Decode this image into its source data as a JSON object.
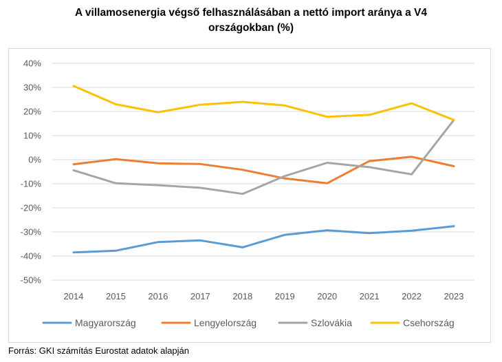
{
  "title_line1": "A villamosenergia végső felhasználásában a nettó import aránya a V4",
  "title_line2": "országokban (%)",
  "source": "Forrás: GKI számítás Eurostat adatok alapján",
  "chart_data": {
    "type": "line",
    "title": "A villamosenergia végső felhasználásában a nettó import aránya a V4 országokban (%)",
    "x": [
      "2014",
      "2015",
      "2016",
      "2017",
      "2018",
      "2019",
      "2020",
      "2021",
      "2022",
      "2023"
    ],
    "ylim": [
      -50,
      40
    ],
    "yticks": [
      40,
      30,
      20,
      10,
      0,
      -10,
      -20,
      -30,
      -40,
      -50
    ],
    "ytick_labels": [
      "40%",
      "30%",
      "20%",
      "10%",
      "0%",
      "-10%",
      "-20%",
      "-30%",
      "-40%",
      "-50%"
    ],
    "grid": true,
    "legend_position": "bottom",
    "series": [
      {
        "name": "Magyarország",
        "color": "#5b9bd5",
        "values": [
          -38.5,
          -37.8,
          -34.2,
          -33.5,
          -36.4,
          -31.2,
          -29.3,
          -30.5,
          -29.5,
          -27.6
        ]
      },
      {
        "name": "Lengyelország",
        "color": "#ed7d31",
        "values": [
          -1.9,
          0.2,
          -1.5,
          -1.8,
          -4.2,
          -7.8,
          -9.8,
          -0.6,
          1.2,
          -2.7
        ]
      },
      {
        "name": "Szlovákia",
        "color": "#a5a5a5",
        "values": [
          -4.4,
          -9.8,
          -10.6,
          -11.7,
          -14.2,
          -6.8,
          -1.3,
          -3.1,
          -6.1,
          16.5
        ]
      },
      {
        "name": "Csehország",
        "color": "#ffc000",
        "values": [
          30.6,
          23.0,
          19.7,
          22.8,
          24.0,
          22.5,
          17.8,
          18.6,
          23.4,
          16.5
        ]
      }
    ]
  }
}
